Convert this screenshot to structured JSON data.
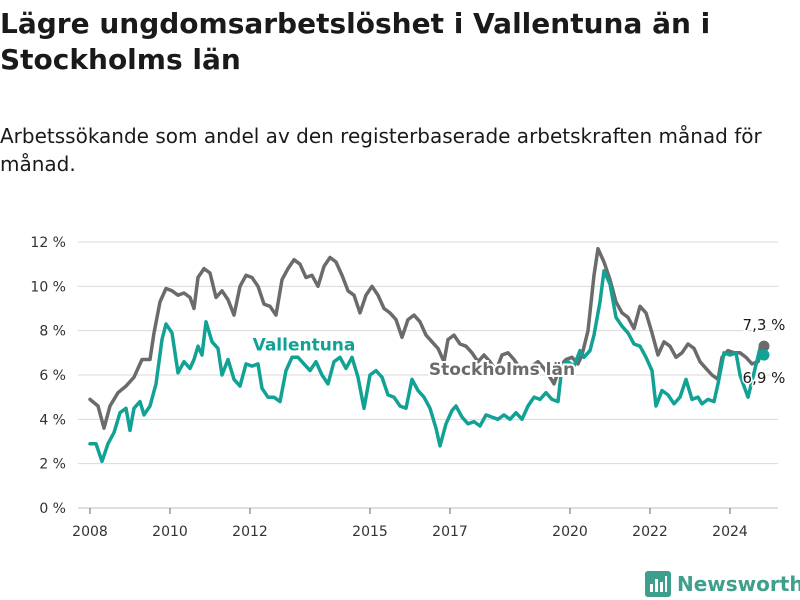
{
  "title": "Lägre ungdomsarbetslöshet i Vallentuna än i Stockholms län",
  "subtitle": "Arbetssökande som andel av den registerbaserade arbetskraften månad för månad.",
  "brand": {
    "name": "Newsworthy",
    "icon": "bar-chart-logo-icon"
  },
  "colors": {
    "vallentuna": "#12a295",
    "stockholm": "#6b6b6b",
    "grid": "#d9d9d9",
    "text": "#1a1a1a"
  },
  "chart_data": {
    "type": "line",
    "x_unit": "year",
    "xlim": [
      2007.7,
      2025.2
    ],
    "ylim": [
      0,
      12
    ],
    "yticks": [
      0,
      2,
      4,
      6,
      8,
      10,
      12
    ],
    "ytick_labels": [
      "0 %",
      "2 %",
      "4 %",
      "6 %",
      "8 %",
      "10 %",
      "12 %"
    ],
    "xticks": [
      2008,
      2010,
      2012,
      2015,
      2017,
      2020,
      2022,
      2024
    ],
    "xtick_labels": [
      "2008",
      "2010",
      "2012",
      "2015",
      "2017",
      "2020",
      "2022",
      "2024"
    ],
    "grid": true,
    "series": [
      {
        "name": "Stockholms län",
        "color": "#6b6b6b",
        "label_position": "middle-right",
        "end_label": "7,3 %",
        "points": [
          [
            2008.0,
            4.9
          ],
          [
            2008.2,
            4.6
          ],
          [
            2008.35,
            3.6
          ],
          [
            2008.5,
            4.6
          ],
          [
            2008.7,
            5.2
          ],
          [
            2008.9,
            5.5
          ],
          [
            2009.1,
            5.9
          ],
          [
            2009.3,
            6.7
          ],
          [
            2009.5,
            6.7
          ],
          [
            2009.6,
            7.9
          ],
          [
            2009.75,
            9.3
          ],
          [
            2009.9,
            9.9
          ],
          [
            2010.05,
            9.8
          ],
          [
            2010.2,
            9.6
          ],
          [
            2010.35,
            9.7
          ],
          [
            2010.5,
            9.5
          ],
          [
            2010.6,
            9.0
          ],
          [
            2010.7,
            10.4
          ],
          [
            2010.85,
            10.8
          ],
          [
            2011.0,
            10.6
          ],
          [
            2011.15,
            9.5
          ],
          [
            2011.3,
            9.8
          ],
          [
            2011.45,
            9.4
          ],
          [
            2011.6,
            8.7
          ],
          [
            2011.75,
            10.0
          ],
          [
            2011.9,
            10.5
          ],
          [
            2012.05,
            10.4
          ],
          [
            2012.2,
            10.0
          ],
          [
            2012.35,
            9.2
          ],
          [
            2012.5,
            9.1
          ],
          [
            2012.65,
            8.7
          ],
          [
            2012.8,
            10.3
          ],
          [
            2012.95,
            10.8
          ],
          [
            2013.1,
            11.2
          ],
          [
            2013.25,
            11.0
          ],
          [
            2013.4,
            10.4
          ],
          [
            2013.55,
            10.5
          ],
          [
            2013.7,
            10.0
          ],
          [
            2013.85,
            10.9
          ],
          [
            2014.0,
            11.3
          ],
          [
            2014.15,
            11.1
          ],
          [
            2014.3,
            10.5
          ],
          [
            2014.45,
            9.8
          ],
          [
            2014.6,
            9.6
          ],
          [
            2014.75,
            8.8
          ],
          [
            2014.9,
            9.6
          ],
          [
            2015.05,
            10.0
          ],
          [
            2015.2,
            9.6
          ],
          [
            2015.35,
            9.0
          ],
          [
            2015.5,
            8.8
          ],
          [
            2015.65,
            8.5
          ],
          [
            2015.8,
            7.7
          ],
          [
            2015.95,
            8.5
          ],
          [
            2016.1,
            8.7
          ],
          [
            2016.25,
            8.4
          ],
          [
            2016.4,
            7.8
          ],
          [
            2016.55,
            7.5
          ],
          [
            2016.7,
            7.2
          ],
          [
            2016.85,
            6.6
          ],
          [
            2016.95,
            7.6
          ],
          [
            2017.1,
            7.8
          ],
          [
            2017.25,
            7.4
          ],
          [
            2017.4,
            7.3
          ],
          [
            2017.55,
            7.0
          ],
          [
            2017.7,
            6.6
          ],
          [
            2017.85,
            6.9
          ],
          [
            2018.0,
            6.6
          ],
          [
            2018.15,
            6.2
          ],
          [
            2018.3,
            6.9
          ],
          [
            2018.45,
            7.0
          ],
          [
            2018.6,
            6.7
          ],
          [
            2018.75,
            6.3
          ],
          [
            2018.9,
            6.0
          ],
          [
            2019.05,
            6.4
          ],
          [
            2019.2,
            6.6
          ],
          [
            2019.35,
            6.3
          ],
          [
            2019.5,
            5.9
          ],
          [
            2019.6,
            5.6
          ],
          [
            2019.75,
            6.4
          ],
          [
            2019.9,
            6.7
          ],
          [
            2020.05,
            6.8
          ],
          [
            2020.2,
            6.5
          ],
          [
            2020.3,
            6.9
          ],
          [
            2020.45,
            8.0
          ],
          [
            2020.6,
            10.5
          ],
          [
            2020.7,
            11.7
          ],
          [
            2020.85,
            11.1
          ],
          [
            2021.0,
            10.3
          ],
          [
            2021.15,
            9.3
          ],
          [
            2021.3,
            8.8
          ],
          [
            2021.45,
            8.6
          ],
          [
            2021.6,
            8.1
          ],
          [
            2021.75,
            9.1
          ],
          [
            2021.9,
            8.8
          ],
          [
            2022.05,
            7.9
          ],
          [
            2022.2,
            6.9
          ],
          [
            2022.35,
            7.5
          ],
          [
            2022.5,
            7.3
          ],
          [
            2022.65,
            6.8
          ],
          [
            2022.8,
            7.0
          ],
          [
            2022.95,
            7.4
          ],
          [
            2023.1,
            7.2
          ],
          [
            2023.25,
            6.6
          ],
          [
            2023.4,
            6.3
          ],
          [
            2023.55,
            6.0
          ],
          [
            2023.7,
            5.8
          ],
          [
            2023.8,
            6.8
          ],
          [
            2023.95,
            7.1
          ],
          [
            2024.1,
            7.0
          ],
          [
            2024.25,
            7.0
          ],
          [
            2024.4,
            6.8
          ],
          [
            2024.55,
            6.5
          ],
          [
            2024.7,
            6.6
          ],
          [
            2024.85,
            7.3
          ]
        ]
      },
      {
        "name": "Vallentuna",
        "color": "#12a295",
        "label_position": "upper-middle",
        "end_label": "6,9 %",
        "points": [
          [
            2008.0,
            2.9
          ],
          [
            2008.15,
            2.9
          ],
          [
            2008.3,
            2.1
          ],
          [
            2008.45,
            2.9
          ],
          [
            2008.6,
            3.4
          ],
          [
            2008.75,
            4.3
          ],
          [
            2008.9,
            4.5
          ],
          [
            2009.0,
            3.5
          ],
          [
            2009.1,
            4.5
          ],
          [
            2009.25,
            4.8
          ],
          [
            2009.35,
            4.2
          ],
          [
            2009.5,
            4.6
          ],
          [
            2009.65,
            5.6
          ],
          [
            2009.8,
            7.6
          ],
          [
            2009.9,
            8.3
          ],
          [
            2010.05,
            7.9
          ],
          [
            2010.2,
            6.1
          ],
          [
            2010.35,
            6.6
          ],
          [
            2010.5,
            6.3
          ],
          [
            2010.6,
            6.7
          ],
          [
            2010.7,
            7.3
          ],
          [
            2010.8,
            6.9
          ],
          [
            2010.9,
            8.4
          ],
          [
            2011.05,
            7.5
          ],
          [
            2011.2,
            7.2
          ],
          [
            2011.3,
            6.0
          ],
          [
            2011.45,
            6.7
          ],
          [
            2011.6,
            5.8
          ],
          [
            2011.75,
            5.5
          ],
          [
            2011.9,
            6.5
          ],
          [
            2012.05,
            6.4
          ],
          [
            2012.2,
            6.5
          ],
          [
            2012.3,
            5.4
          ],
          [
            2012.45,
            5.0
          ],
          [
            2012.6,
            5.0
          ],
          [
            2012.75,
            4.8
          ],
          [
            2012.9,
            6.2
          ],
          [
            2013.05,
            6.8
          ],
          [
            2013.2,
            6.8
          ],
          [
            2013.35,
            6.5
          ],
          [
            2013.5,
            6.2
          ],
          [
            2013.65,
            6.6
          ],
          [
            2013.8,
            6.0
          ],
          [
            2013.95,
            5.6
          ],
          [
            2014.1,
            6.6
          ],
          [
            2014.25,
            6.8
          ],
          [
            2014.4,
            6.3
          ],
          [
            2014.55,
            6.8
          ],
          [
            2014.7,
            5.9
          ],
          [
            2014.85,
            4.5
          ],
          [
            2015.0,
            6.0
          ],
          [
            2015.15,
            6.2
          ],
          [
            2015.3,
            5.9
          ],
          [
            2015.45,
            5.1
          ],
          [
            2015.6,
            5.0
          ],
          [
            2015.75,
            4.6
          ],
          [
            2015.9,
            4.5
          ],
          [
            2016.05,
            5.8
          ],
          [
            2016.2,
            5.3
          ],
          [
            2016.35,
            5.0
          ],
          [
            2016.5,
            4.5
          ],
          [
            2016.65,
            3.6
          ],
          [
            2016.75,
            2.8
          ],
          [
            2016.9,
            3.8
          ],
          [
            2017.05,
            4.4
          ],
          [
            2017.15,
            4.6
          ],
          [
            2017.3,
            4.1
          ],
          [
            2017.45,
            3.8
          ],
          [
            2017.6,
            3.9
          ],
          [
            2017.75,
            3.7
          ],
          [
            2017.9,
            4.2
          ],
          [
            2018.05,
            4.1
          ],
          [
            2018.2,
            4.0
          ],
          [
            2018.35,
            4.2
          ],
          [
            2018.5,
            4.0
          ],
          [
            2018.65,
            4.3
          ],
          [
            2018.8,
            4.0
          ],
          [
            2018.95,
            4.6
          ],
          [
            2019.1,
            5.0
          ],
          [
            2019.25,
            4.9
          ],
          [
            2019.4,
            5.2
          ],
          [
            2019.55,
            4.9
          ],
          [
            2019.7,
            4.8
          ],
          [
            2019.8,
            6.4
          ],
          [
            2019.95,
            6.6
          ],
          [
            2020.1,
            6.4
          ],
          [
            2020.25,
            7.1
          ],
          [
            2020.35,
            6.8
          ],
          [
            2020.5,
            7.1
          ],
          [
            2020.6,
            7.8
          ],
          [
            2020.75,
            9.3
          ],
          [
            2020.85,
            10.7
          ],
          [
            2021.0,
            10.1
          ],
          [
            2021.15,
            8.6
          ],
          [
            2021.3,
            8.2
          ],
          [
            2021.45,
            7.9
          ],
          [
            2021.6,
            7.4
          ],
          [
            2021.75,
            7.3
          ],
          [
            2021.9,
            6.8
          ],
          [
            2022.05,
            6.2
          ],
          [
            2022.15,
            4.6
          ],
          [
            2022.3,
            5.3
          ],
          [
            2022.45,
            5.1
          ],
          [
            2022.6,
            4.7
          ],
          [
            2022.75,
            5.0
          ],
          [
            2022.9,
            5.8
          ],
          [
            2023.05,
            4.9
          ],
          [
            2023.2,
            5.0
          ],
          [
            2023.3,
            4.7
          ],
          [
            2023.45,
            4.9
          ],
          [
            2023.6,
            4.8
          ],
          [
            2023.7,
            5.6
          ],
          [
            2023.85,
            7.0
          ],
          [
            2024.0,
            6.9
          ],
          [
            2024.15,
            7.0
          ],
          [
            2024.25,
            6.0
          ],
          [
            2024.35,
            5.5
          ],
          [
            2024.45,
            5.0
          ],
          [
            2024.6,
            6.1
          ],
          [
            2024.75,
            7.2
          ],
          [
            2024.85,
            6.9
          ]
        ]
      }
    ]
  }
}
